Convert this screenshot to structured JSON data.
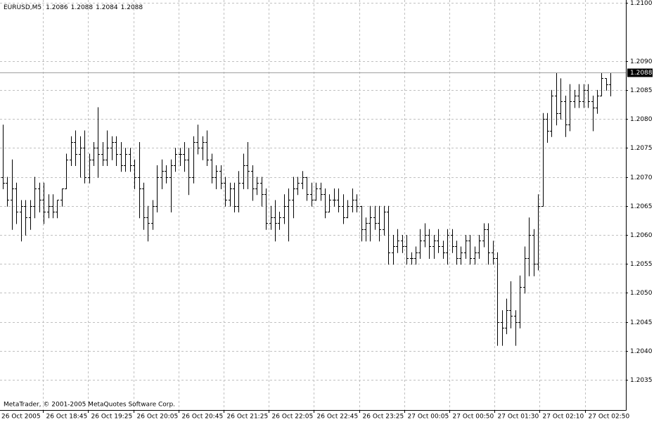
{
  "chart_data": {
    "type": "ohlc",
    "symbol": "EURUSD,M5",
    "header_ohlc": [
      1.2086,
      1.2088,
      1.2084,
      1.2088
    ],
    "copyright": "MetaTrader, © 2001-2005 MetaQuotes Software Corp.",
    "current_price": 1.2088,
    "color": "#000000",
    "grid": true,
    "ylim": [
      1.20298,
      1.21005
    ],
    "yticks": [
      {
        "value": 1.2035,
        "label": "1.2035"
      },
      {
        "value": 1.204,
        "label": "1.2040"
      },
      {
        "value": 1.2045,
        "label": "1.2045"
      },
      {
        "value": 1.205,
        "label": "1.2050"
      },
      {
        "value": 1.2055,
        "label": "1.2055"
      },
      {
        "value": 1.206,
        "label": "1.2060"
      },
      {
        "value": 1.2065,
        "label": "1.2065"
      },
      {
        "value": 1.207,
        "label": "1.2070"
      },
      {
        "value": 1.2075,
        "label": "1.2075"
      },
      {
        "value": 1.208,
        "label": "1.2080"
      },
      {
        "value": 1.2085,
        "label": "1.2085"
      },
      {
        "value": 1.209,
        "label": "1.2090"
      },
      {
        "value": 1.21,
        "label": "1.2100"
      }
    ],
    "xlabels": [
      "26 Oct 2005",
      "26 Oct 18:45",
      "26 Oct 19:25",
      "26 Oct 20:05",
      "26 Oct 20:45",
      "26 Oct 21:25",
      "26 Oct 22:05",
      "26 Oct 22:45",
      "26 Oct 23:25",
      "27 Oct 00:05",
      "27 Oct 00:50",
      "27 Oct 01:30",
      "27 Oct 02:10",
      "27 Oct 02:50"
    ],
    "open": [
      1.207,
      1.2069,
      1.2066,
      1.2068,
      1.2064,
      1.2065,
      1.2063,
      1.2065,
      1.2068,
      1.2066,
      1.2064,
      1.2065,
      1.2064,
      1.2066,
      1.2068,
      1.2073,
      1.2076,
      1.2074,
      1.2075,
      1.207,
      1.2073,
      1.2075,
      1.2074,
      1.2073,
      1.2075,
      1.2076,
      1.2074,
      1.2072,
      1.2074,
      1.2072,
      1.207,
      1.2068,
      1.2063,
      1.2062,
      1.2065,
      1.207,
      1.2071,
      1.207,
      1.2072,
      1.2074,
      1.2074,
      1.2073,
      1.207,
      1.2076,
      1.2075,
      1.2076,
      1.2073,
      1.207,
      1.2071,
      1.2069,
      1.2066,
      1.2068,
      1.2065,
      1.2069,
      1.2072,
      1.2071,
      1.2068,
      1.2069,
      1.2067,
      1.2062,
      1.2063,
      1.2062,
      1.2063,
      1.2065,
      1.2066,
      1.2068,
      1.2069,
      1.207,
      1.2067,
      1.2066,
      1.2068,
      1.2067,
      1.2064,
      1.2066,
      1.2066,
      1.2065,
      1.2063,
      1.2065,
      1.2066,
      1.2065,
      1.2061,
      1.2062,
      1.2063,
      1.2062,
      1.2061,
      1.2064,
      1.2057,
      1.2058,
      1.2059,
      1.2058,
      1.2056,
      1.2056,
      1.2057,
      1.2059,
      1.206,
      1.2058,
      1.2059,
      1.2058,
      1.2057,
      1.206,
      1.2058,
      1.2056,
      1.2057,
      1.2059,
      1.2056,
      1.2057,
      1.2059,
      1.2061,
      1.2057,
      1.2056,
      1.2045,
      1.2044,
      1.2047,
      1.2046,
      1.2045,
      1.2051,
      1.2056,
      1.206,
      1.2055,
      1.2065,
      1.208,
      1.2078,
      1.2084,
      1.2081,
      1.2083,
      1.2079,
      1.2083,
      1.2084,
      1.2083,
      1.2085,
      1.2083,
      1.2082,
      1.2084,
      1.2087,
      1.2086
    ],
    "high": [
      1.2079,
      1.207,
      1.2073,
      1.2069,
      1.2066,
      1.2066,
      1.2066,
      1.207,
      1.2069,
      1.2069,
      1.2067,
      1.2067,
      1.2066,
      1.2068,
      1.2074,
      1.2077,
      1.2078,
      1.2077,
      1.2078,
      1.2074,
      1.2076,
      1.2082,
      1.2076,
      1.2078,
      1.2077,
      1.2077,
      1.2076,
      1.2075,
      1.2075,
      1.2073,
      1.2076,
      1.2069,
      1.2065,
      1.2066,
      1.2072,
      1.2073,
      1.2072,
      1.2073,
      1.2075,
      1.2075,
      1.2076,
      1.2075,
      1.2077,
      1.2079,
      1.2077,
      1.2078,
      1.2074,
      1.2072,
      1.2072,
      1.207,
      1.2069,
      1.2069,
      1.2071,
      1.2074,
      1.2076,
      1.2072,
      1.207,
      1.207,
      1.2068,
      1.2065,
      1.2066,
      1.2064,
      1.2067,
      1.2068,
      1.207,
      1.207,
      1.2071,
      1.207,
      1.2069,
      1.2069,
      1.2069,
      1.2068,
      1.2067,
      1.2068,
      1.2068,
      1.2067,
      1.2066,
      1.2068,
      1.2067,
      1.2065,
      1.2063,
      1.2065,
      1.2065,
      1.2065,
      1.2065,
      1.2065,
      1.206,
      1.2061,
      1.206,
      1.206,
      1.2057,
      1.2058,
      1.2061,
      1.2062,
      1.2061,
      1.206,
      1.2061,
      1.2059,
      1.2061,
      1.2061,
      1.2059,
      1.2058,
      1.206,
      1.206,
      1.2058,
      1.206,
      1.2062,
      1.2062,
      1.2059,
      1.2057,
      1.2047,
      1.2049,
      1.2052,
      1.2047,
      1.2053,
      1.2058,
      1.2063,
      1.2061,
      1.2067,
      1.2081,
      1.2081,
      1.2085,
      1.2088,
      1.2087,
      1.2084,
      1.2086,
      1.2085,
      1.2086,
      1.2086,
      1.2086,
      1.2084,
      1.2085,
      1.2088,
      1.2087,
      1.2088
    ],
    "low": [
      1.2068,
      1.2065,
      1.2061,
      1.2062,
      1.2059,
      1.206,
      1.2061,
      1.2063,
      1.2064,
      1.2062,
      1.2063,
      1.2063,
      1.2063,
      1.2065,
      1.2068,
      1.2072,
      1.2072,
      1.207,
      1.2069,
      1.2069,
      1.2072,
      1.207,
      1.2072,
      1.2072,
      1.2073,
      1.2072,
      1.2071,
      1.2071,
      1.2071,
      1.2068,
      1.2063,
      1.2061,
      1.2059,
      1.2061,
      1.2064,
      1.2068,
      1.2069,
      1.2064,
      1.2071,
      1.2072,
      1.2071,
      1.2067,
      1.2069,
      1.2074,
      1.2073,
      1.2072,
      1.2069,
      1.2068,
      1.2068,
      1.2065,
      1.2065,
      1.2064,
      1.2064,
      1.2068,
      1.2068,
      1.2066,
      1.2067,
      1.2065,
      1.2061,
      1.2061,
      1.2059,
      1.2061,
      1.2062,
      1.2059,
      1.2063,
      1.2067,
      1.2068,
      1.2066,
      1.2065,
      1.2066,
      1.2066,
      1.2063,
      1.2064,
      1.2065,
      1.2064,
      1.2062,
      1.2063,
      1.2064,
      1.2064,
      1.2059,
      1.2059,
      1.2059,
      1.2061,
      1.2059,
      1.206,
      1.2055,
      1.2055,
      1.2057,
      1.2057,
      1.2055,
      1.2055,
      1.2055,
      1.2056,
      1.2058,
      1.2056,
      1.2056,
      1.2057,
      1.2056,
      1.2055,
      1.2057,
      1.2055,
      1.2055,
      1.2056,
      1.2055,
      1.2055,
      1.2056,
      1.2058,
      1.2055,
      1.2055,
      1.2041,
      1.2041,
      1.2043,
      1.2044,
      1.2041,
      1.2044,
      1.205,
      1.2053,
      1.2053,
      1.2054,
      1.2065,
      1.2076,
      1.2077,
      1.2079,
      1.208,
      1.2077,
      1.2078,
      1.2082,
      1.2082,
      1.2082,
      1.2082,
      1.2078,
      1.2081,
      1.2084,
      1.2085,
      1.2084
    ],
    "close": [
      1.2069,
      1.2066,
      1.2068,
      1.2064,
      1.2065,
      1.2063,
      1.2065,
      1.2068,
      1.2066,
      1.2064,
      1.2065,
      1.2064,
      1.2066,
      1.2068,
      1.2073,
      1.2076,
      1.2074,
      1.2075,
      1.207,
      1.2073,
      1.2075,
      1.2074,
      1.2073,
      1.2075,
      1.2076,
      1.2074,
      1.2072,
      1.2074,
      1.2072,
      1.207,
      1.2068,
      1.2063,
      1.2062,
      1.2065,
      1.207,
      1.2071,
      1.207,
      1.2072,
      1.2074,
      1.2074,
      1.2073,
      1.207,
      1.2076,
      1.2075,
      1.2076,
      1.2073,
      1.207,
      1.2071,
      1.2069,
      1.2066,
      1.2068,
      1.2065,
      1.2069,
      1.2072,
      1.2071,
      1.2068,
      1.2069,
      1.2067,
      1.2062,
      1.2063,
      1.2062,
      1.2063,
      1.2065,
      1.2066,
      1.2068,
      1.2069,
      1.207,
      1.2067,
      1.2066,
      1.2068,
      1.2067,
      1.2064,
      1.2066,
      1.2066,
      1.2065,
      1.2063,
      1.2065,
      1.2066,
      1.2065,
      1.2061,
      1.2062,
      1.2063,
      1.2062,
      1.2061,
      1.2064,
      1.2057,
      1.2058,
      1.2059,
      1.2058,
      1.2056,
      1.2056,
      1.2057,
      1.2059,
      1.206,
      1.2058,
      1.2059,
      1.2058,
      1.2057,
      1.206,
      1.2058,
      1.2056,
      1.2057,
      1.2059,
      1.2056,
      1.2057,
      1.2059,
      1.2061,
      1.2057,
      1.2056,
      1.2045,
      1.2044,
      1.2047,
      1.2046,
      1.2045,
      1.2051,
      1.2056,
      1.206,
      1.2055,
      1.2065,
      1.208,
      1.2078,
      1.2084,
      1.2081,
      1.2083,
      1.2079,
      1.2083,
      1.2084,
      1.2083,
      1.2085,
      1.2083,
      1.2082,
      1.2084,
      1.2087,
      1.2086,
      1.2088
    ]
  }
}
